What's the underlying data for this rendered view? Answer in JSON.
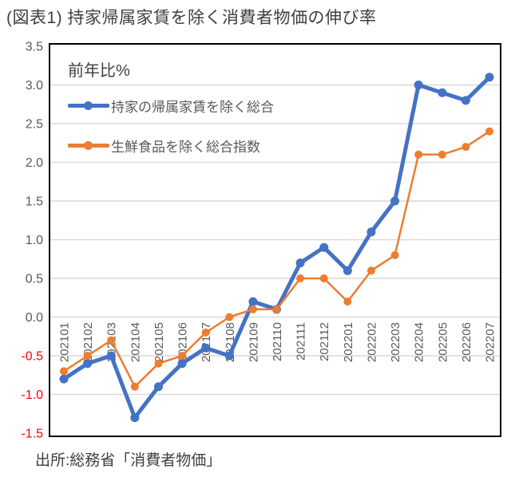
{
  "title": "(図表1) 持家帰属家賃を除く消費者物価の伸び率",
  "source": "出所:総務省「消費者物価」",
  "chart_data": {
    "type": "line",
    "unit_label": "前年比%",
    "categories": [
      "202101",
      "202102",
      "202103",
      "202104",
      "202105",
      "202106",
      "202107",
      "202108",
      "202109",
      "202110",
      "202111",
      "202112",
      "202201",
      "202202",
      "202203",
      "202204",
      "202205",
      "202206",
      "202207"
    ],
    "series": [
      {
        "name": "持家の帰属家賃を除く総合",
        "color": "#4472C4",
        "line_width": 5,
        "marker_radius": 5.5,
        "values": [
          -0.8,
          -0.6,
          -0.5,
          -1.3,
          -0.9,
          -0.6,
          -0.4,
          -0.5,
          0.2,
          0.1,
          0.7,
          0.9,
          0.6,
          1.1,
          1.5,
          3.0,
          2.9,
          2.8,
          3.1
        ]
      },
      {
        "name": "生鮮食品を除く総合指数",
        "color": "#ED7D31",
        "line_width": 2.5,
        "marker_radius": 5,
        "values": [
          -0.7,
          -0.5,
          -0.3,
          -0.9,
          -0.6,
          -0.5,
          -0.2,
          0.0,
          0.1,
          0.1,
          0.5,
          0.5,
          0.2,
          0.6,
          0.8,
          2.1,
          2.1,
          2.2,
          2.4
        ]
      }
    ],
    "ylim": [
      -1.5,
      3.5
    ],
    "ytick_step": 0.5,
    "grid": "horizontal-only",
    "legend_position": "top-left-inside",
    "colors": {
      "tick_positive": "#595959",
      "tick_negative": "#FF0000",
      "gridline": "#D9D9D9",
      "plot_border": "#000000",
      "x_label": "#595959"
    }
  }
}
